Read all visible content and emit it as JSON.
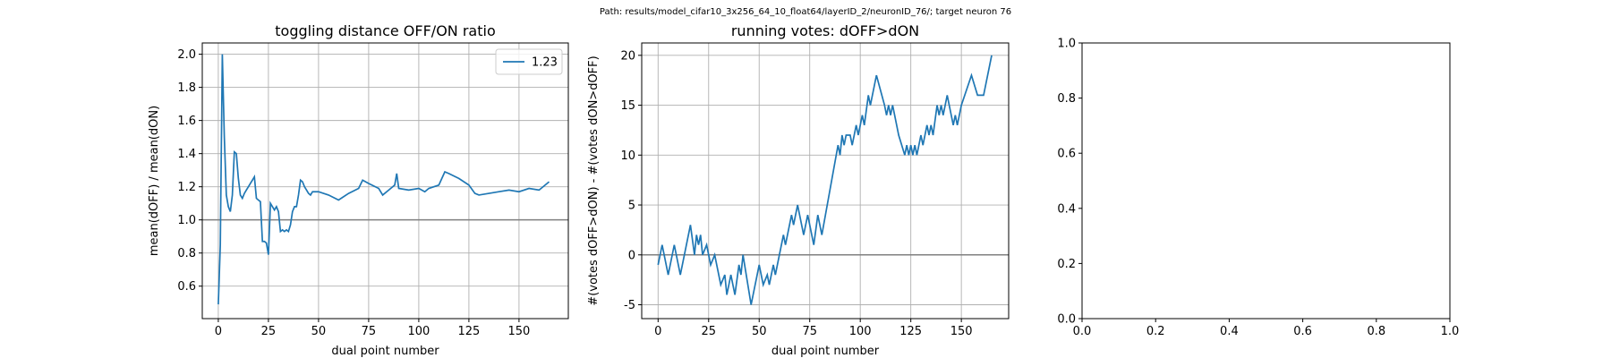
{
  "title": "Path: results/model_cifar10_3x256_64_10_float64/layerID_2/neuronID_76/; target neuron 76",
  "chart_data": [
    {
      "type": "line",
      "title": "toggling distance OFF/ON ratio",
      "x_label": "dual point number",
      "y_label": "mean(dOFF) / mean(dON)",
      "xlim": [
        -8,
        174.6
      ],
      "ylim": [
        0.404,
        2.068
      ],
      "xticks": [
        0,
        25,
        50,
        75,
        100,
        125,
        150
      ],
      "yticks": [
        0.6,
        0.8,
        {
          "value": 1,
          "label": "1.0"
        },
        1.2,
        1.4,
        1.6,
        1.8,
        {
          "value": 2,
          "label": "2.0"
        }
      ],
      "grid": true,
      "hline": 1,
      "legend": "upper right",
      "x": [
        0,
        1,
        2,
        3,
        4,
        5,
        6,
        7,
        8,
        9,
        10,
        11,
        12,
        13,
        14,
        15,
        16,
        17,
        18,
        19,
        20,
        21,
        22,
        23,
        24,
        25,
        26,
        27,
        28,
        29,
        30,
        31,
        32,
        33,
        34,
        35,
        36,
        37,
        38,
        39,
        40,
        41,
        42,
        43,
        44,
        45,
        46,
        47,
        50,
        55,
        60,
        65,
        70,
        72,
        75,
        80,
        82,
        85,
        88,
        89,
        90,
        95,
        100,
        103,
        105,
        110,
        113,
        115,
        120,
        125,
        128,
        130,
        135,
        140,
        145,
        150,
        155,
        160,
        165
      ],
      "series": [
        {
          "name": "1.23",
          "color": "#1f77b4",
          "values": [
            0.49,
            0.85,
            2.0,
            1.5,
            1.15,
            1.08,
            1.05,
            1.15,
            1.41,
            1.4,
            1.25,
            1.15,
            1.13,
            1.16,
            1.18,
            1.2,
            1.22,
            1.24,
            1.26,
            1.13,
            1.12,
            1.11,
            0.87,
            0.87,
            0.86,
            0.79,
            1.1,
            1.08,
            1.06,
            1.08,
            1.05,
            0.93,
            0.94,
            0.93,
            0.94,
            0.93,
            0.97,
            1.05,
            1.08,
            1.08,
            1.15,
            1.24,
            1.23,
            1.2,
            1.18,
            1.16,
            1.15,
            1.17,
            1.17,
            1.15,
            1.12,
            1.16,
            1.19,
            1.24,
            1.22,
            1.19,
            1.15,
            1.18,
            1.21,
            1.28,
            1.19,
            1.18,
            1.19,
            1.17,
            1.19,
            1.21,
            1.29,
            1.28,
            1.25,
            1.21,
            1.16,
            1.15,
            1.16,
            1.17,
            1.18,
            1.17,
            1.19,
            1.18,
            1.23
          ]
        }
      ]
    },
    {
      "type": "line",
      "title": "running votes: dOFF>dON",
      "x_label": "dual point number",
      "y_label": "#(votes dOFF>dON) - #(votes dON>dOFF)",
      "xlim": [
        -8.1,
        173.4
      ],
      "ylim": [
        -6.39,
        21.24
      ],
      "xticks": [
        0,
        25,
        50,
        75,
        100,
        125,
        150
      ],
      "yticks": [
        -5,
        0,
        5,
        10,
        15,
        20
      ],
      "grid": true,
      "hline": 0,
      "x": [
        0,
        2,
        5,
        8,
        11,
        16,
        18,
        19,
        20,
        21,
        22,
        24,
        26,
        28,
        31,
        33,
        34,
        36,
        38,
        40,
        41,
        42,
        46,
        50,
        52,
        54,
        55,
        57,
        58,
        62,
        63,
        66,
        67,
        69,
        72,
        74,
        77,
        79,
        81,
        89,
        90,
        91,
        92,
        93,
        95,
        96,
        98,
        99,
        101,
        102,
        104,
        105,
        108,
        112,
        113,
        114,
        115,
        116,
        117,
        119,
        122,
        123,
        124,
        125,
        126,
        127,
        128,
        130,
        131,
        133,
        134,
        135,
        136,
        138,
        139,
        140,
        141,
        143,
        146,
        147,
        148,
        150,
        155,
        158,
        161,
        165
      ],
      "series": [
        {
          "name": "votes",
          "color": "#1f77b4",
          "values": [
            -1,
            1,
            -2,
            1,
            -2,
            3,
            0,
            2,
            1,
            2,
            0,
            1,
            -1,
            0,
            -3,
            -2,
            -4,
            -2,
            -4,
            -1,
            -2,
            0,
            -5,
            -1,
            -3,
            -2,
            -3,
            -1,
            -2,
            2,
            1,
            4,
            3,
            5,
            2,
            4,
            1,
            4,
            2,
            11,
            10,
            12,
            11,
            12,
            12,
            11,
            13,
            12,
            14,
            13,
            16,
            15,
            18,
            15,
            14,
            15,
            14,
            15,
            14,
            12,
            10,
            11,
            10,
            11,
            10,
            11,
            10,
            12,
            11,
            13,
            12,
            13,
            12,
            15,
            14,
            15,
            14,
            16,
            13,
            14,
            13,
            15,
            18,
            16,
            16,
            20
          ]
        }
      ]
    },
    {
      "type": "empty",
      "xlim": [
        0,
        1
      ],
      "ylim": [
        0,
        1
      ],
      "xticks": [
        {
          "value": 0,
          "label": "0.0"
        },
        0.2,
        0.4,
        0.6,
        0.8,
        {
          "value": 1,
          "label": "1.0"
        }
      ],
      "yticks": [
        {
          "value": 0,
          "label": "0.0"
        },
        0.2,
        0.4,
        0.6,
        0.8,
        {
          "value": 1,
          "label": "1.0"
        }
      ],
      "grid": false
    }
  ]
}
